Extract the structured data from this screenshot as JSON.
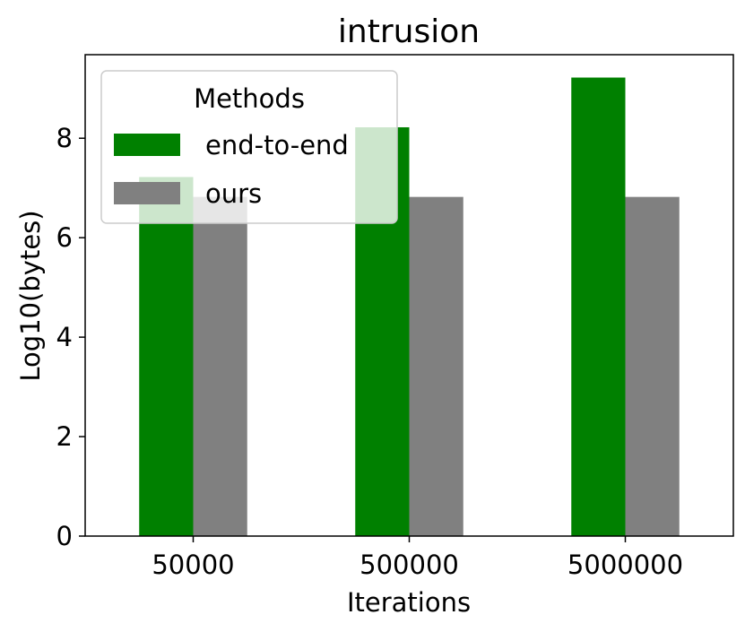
{
  "chart_data": {
    "type": "bar",
    "title": "intrusion",
    "xlabel": "Iterations",
    "ylabel": "Log10(bytes)",
    "categories": [
      "50000",
      "500000",
      "5000000"
    ],
    "series": [
      {
        "name": "end-to-end",
        "color": "#008000",
        "values": [
          7.22,
          8.22,
          9.22
        ]
      },
      {
        "name": "ours",
        "color": "#808080",
        "values": [
          6.82,
          6.82,
          6.82
        ]
      }
    ],
    "ylim": [
      0,
      9.68
    ],
    "yticks": [
      0,
      2,
      4,
      6,
      8
    ],
    "legend": {
      "title": "Methods",
      "placement": "top-left"
    },
    "grid": false
  }
}
